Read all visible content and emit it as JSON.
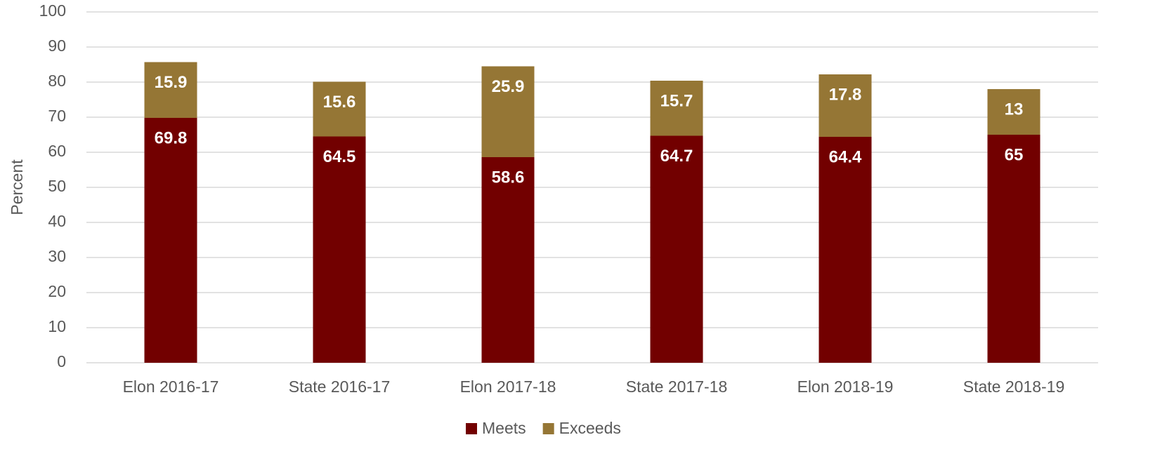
{
  "chart_data": {
    "type": "stacked_bar",
    "ylabel": "Percent",
    "categories": [
      "Elon 2016-17",
      "State 2016-17",
      "Elon 2017-18",
      "State 2017-18",
      "Elon 2018-19",
      "State 2018-19"
    ],
    "series": [
      {
        "name": "Meets",
        "color": "#720000",
        "values": [
          69.8,
          64.5,
          58.6,
          64.7,
          64.4,
          65
        ]
      },
      {
        "name": "Exceeds",
        "color": "#957635",
        "values": [
          15.9,
          15.6,
          25.9,
          15.7,
          17.8,
          13
        ]
      }
    ],
    "ylim": [
      0,
      100
    ],
    "yticks": [
      0,
      10,
      20,
      30,
      40,
      50,
      60,
      70,
      80,
      90,
      100
    ],
    "grid": true,
    "legend": "bottom"
  }
}
